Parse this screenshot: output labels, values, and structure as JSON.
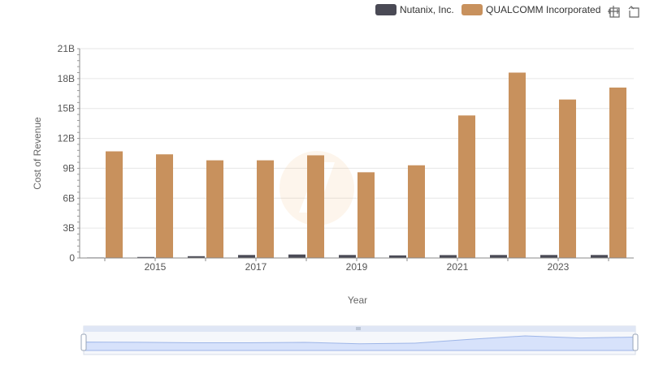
{
  "chart_data": {
    "type": "bar",
    "xlabel": "Year",
    "ylabel": "Cost of Revenue",
    "x": [
      2014,
      2015,
      2016,
      2017,
      2018,
      2019,
      2020,
      2021,
      2022,
      2023,
      2024
    ],
    "x_ticks": [
      "2015",
      "2017",
      "2019",
      "2021",
      "2023"
    ],
    "y_ticks": [
      "0",
      "3B",
      "6B",
      "9B",
      "12B",
      "15B",
      "18B",
      "21B"
    ],
    "ylim": [
      0,
      21000000000
    ],
    "grid": true,
    "legend_position": "top-right",
    "series": [
      {
        "name": "Nutanix, Inc.",
        "color": "#4a4a55",
        "values": [
          50000000,
          100000000,
          180000000,
          300000000,
          350000000,
          300000000,
          260000000,
          290000000,
          300000000,
          300000000,
          300000000
        ]
      },
      {
        "name": "QUALCOMM Incorporated",
        "color": "#c8915d",
        "values": [
          10700000000,
          10400000000,
          9800000000,
          9800000000,
          10300000000,
          8600000000,
          9300000000,
          14300000000,
          18600000000,
          15900000000,
          17100000000
        ]
      }
    ]
  },
  "toolbar": {
    "zoom_icon": "zoom-select-icon",
    "reset_icon": "zoom-reset-icon"
  }
}
